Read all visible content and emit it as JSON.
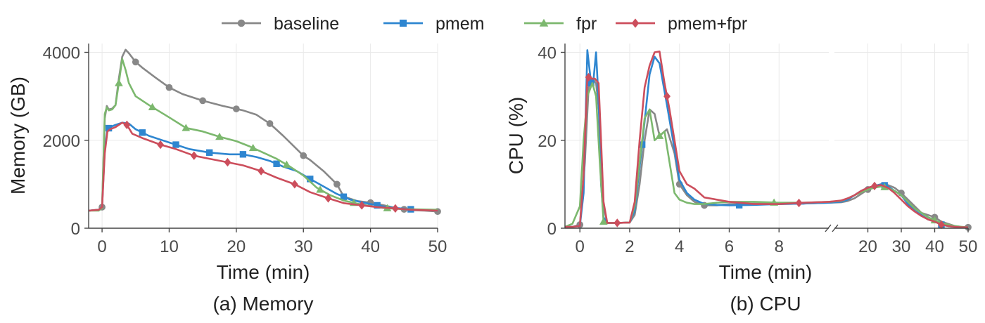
{
  "colors": {
    "baseline": "#888888",
    "pmem": "#2e86d0",
    "fpr": "#7cb86e",
    "pmem+fpr": "#cc4e5c"
  },
  "legend": [
    {
      "label": "baseline",
      "marker": "circle"
    },
    {
      "label": "pmem",
      "marker": "square"
    },
    {
      "label": "fpr",
      "marker": "triangle"
    },
    {
      "label": "pmem+fpr",
      "marker": "diamond"
    }
  ],
  "chart_data": [
    {
      "type": "line",
      "caption": "(a) Memory",
      "xlabel": "Time (min)",
      "ylabel": "Memory (GB)",
      "xlim": [
        -2,
        50
      ],
      "ylim": [
        0,
        4200
      ],
      "xticks": [
        0,
        10,
        20,
        30,
        40,
        50
      ],
      "yticks": [
        0,
        2000,
        4000
      ],
      "grid": true,
      "series": [
        {
          "name": "baseline",
          "marker": "circle",
          "x": [
            -2,
            -0.5,
            0,
            0.4,
            0.7,
            1,
            1.5,
            2,
            2.5,
            3,
            3.5,
            4,
            5,
            6,
            8,
            10,
            12,
            15,
            18,
            21,
            23,
            25,
            27,
            29,
            30,
            31,
            33,
            35,
            36,
            38,
            40,
            42,
            44,
            46,
            48,
            50
          ],
          "y": [
            400,
            420,
            480,
            2500,
            2780,
            2700,
            2720,
            2800,
            3400,
            3900,
            4060,
            3980,
            3780,
            3650,
            3420,
            3200,
            3050,
            2900,
            2780,
            2680,
            2580,
            2380,
            2100,
            1800,
            1650,
            1550,
            1300,
            1000,
            720,
            620,
            580,
            520,
            450,
            410,
            400,
            380
          ],
          "marker_x": [
            0,
            5,
            10,
            15,
            20,
            25,
            30,
            35,
            40,
            45,
            50
          ]
        },
        {
          "name": "pmem",
          "marker": "square",
          "x": [
            -2,
            -0.5,
            0,
            0.4,
            0.8,
            1.2,
            2,
            3,
            4,
            5,
            7,
            9,
            11,
            13,
            16,
            19,
            21,
            23,
            25,
            27,
            29,
            31,
            33,
            35,
            37,
            39,
            41,
            43,
            46,
            50
          ],
          "y": [
            400,
            420,
            480,
            1800,
            2250,
            2300,
            2350,
            2400,
            2380,
            2250,
            2100,
            2000,
            1900,
            1800,
            1720,
            1680,
            1680,
            1620,
            1530,
            1400,
            1300,
            1120,
            950,
            780,
            650,
            580,
            520,
            470,
            430,
            400
          ],
          "marker_x": [
            1,
            6,
            11,
            16,
            21,
            26,
            31,
            36,
            41,
            46
          ]
        },
        {
          "name": "fpr",
          "marker": "triangle",
          "x": [
            -2,
            -0.5,
            0,
            0.4,
            0.7,
            1,
            1.5,
            2,
            2.5,
            3,
            3.5,
            4,
            5,
            7,
            10,
            12.5,
            15,
            17.5,
            20,
            22,
            24,
            26,
            28,
            30,
            32,
            34,
            36,
            38,
            40,
            42,
            44,
            46,
            50
          ],
          "y": [
            400,
            400,
            460,
            2600,
            2750,
            2680,
            2700,
            2800,
            3300,
            3850,
            3600,
            3300,
            3000,
            2800,
            2520,
            2280,
            2200,
            2080,
            1980,
            1860,
            1720,
            1580,
            1400,
            1200,
            920,
            750,
            630,
            560,
            500,
            460,
            440,
            430,
            420
          ],
          "marker_x": [
            2.5,
            7.5,
            12.5,
            17.5,
            22.5,
            27.5,
            32.5,
            37.5,
            42.5
          ]
        },
        {
          "name": "pmem+fpr",
          "marker": "diamond",
          "x": [
            -2,
            -0.5,
            0,
            0.4,
            0.8,
            1.2,
            2,
            3,
            3.7,
            4.5,
            6,
            8.7,
            11,
            13.7,
            16,
            18.7,
            21,
            23.7,
            26,
            28.7,
            31,
            33.7,
            36,
            38.7,
            41,
            43.7,
            46,
            50
          ],
          "y": [
            400,
            420,
            480,
            1700,
            2200,
            2250,
            2300,
            2400,
            2350,
            2150,
            2050,
            1900,
            1800,
            1650,
            1580,
            1500,
            1430,
            1300,
            1150,
            1000,
            820,
            680,
            570,
            520,
            480,
            450,
            420,
            400
          ],
          "marker_x": [
            3.7,
            8.7,
            13.7,
            18.7,
            23.7,
            28.7,
            33.7,
            38.7,
            43.7
          ]
        }
      ]
    },
    {
      "type": "line",
      "caption": "(b) CPU",
      "xlabel": "Time (min)",
      "ylabel": "CPU (%)",
      "broken_x_axis": true,
      "ylim": [
        0,
        42
      ],
      "yticks": [
        0,
        20,
        40
      ],
      "grid": true,
      "left_segment": {
        "xlim": [
          -0.6,
          10
        ],
        "xticks": [
          0,
          2,
          4,
          6,
          8
        ]
      },
      "right_segment": {
        "xlim": [
          10,
          50
        ],
        "xticks": [
          20,
          30,
          40,
          50
        ]
      },
      "series": [
        {
          "name": "baseline",
          "marker": "circle",
          "x": [
            -0.6,
            -0.3,
            0,
            0.2,
            0.35,
            0.5,
            0.65,
            0.8,
            0.95,
            1.1,
            1.5,
            2,
            2.2,
            2.4,
            2.6,
            2.8,
            3,
            3.2,
            3.5,
            3.8,
            4,
            4.3,
            4.6,
            5,
            5.5,
            6,
            6.5,
            7,
            8,
            9,
            10,
            12,
            14,
            16,
            18,
            20,
            22,
            24,
            26,
            28,
            30,
            32,
            34,
            36,
            38,
            40,
            42,
            44,
            46,
            48,
            50
          ],
          "y": [
            0.3,
            0.3,
            0.8,
            15,
            32,
            34,
            33,
            25,
            5,
            1.2,
            1.2,
            1.3,
            3,
            10,
            20,
            27,
            26,
            21,
            22.5,
            17,
            10,
            7.5,
            6,
            5.2,
            5.2,
            5.5,
            5.5,
            5.6,
            5.5,
            5.6,
            5.8,
            5.9,
            6.2,
            6.8,
            7.8,
            8.8,
            9.6,
            10,
            9.8,
            9.2,
            8,
            6.5,
            5,
            3.5,
            3,
            2.5,
            1.5,
            1,
            0.5,
            0.3,
            0.2
          ],
          "marker_x": [
            0,
            4,
            5,
            20,
            30,
            40,
            50
          ]
        },
        {
          "name": "pmem",
          "marker": "square",
          "x": [
            -0.6,
            -0.3,
            0,
            0.15,
            0.3,
            0.45,
            0.55,
            0.65,
            0.75,
            0.85,
            0.95,
            1.1,
            1.5,
            2,
            2.2,
            2.5,
            2.8,
            3,
            3.2,
            3.5,
            3.8,
            4,
            4.3,
            4.6,
            5,
            5.5,
            6,
            7,
            8,
            9,
            10,
            12,
            14,
            16,
            18,
            20,
            22,
            24,
            26,
            28,
            30,
            32,
            34,
            36,
            38,
            40,
            42,
            44,
            46,
            48,
            50
          ],
          "y": [
            0.3,
            0.3,
            0.5,
            8,
            40.5,
            33,
            34,
            40,
            29,
            10,
            2.5,
            1.2,
            1.2,
            1.3,
            4,
            19,
            35,
            39,
            37.5,
            28,
            18,
            11,
            8,
            6.5,
            5.5,
            5.3,
            5.2,
            5.3,
            5.5,
            5.6,
            5.8,
            6,
            6.5,
            7.5,
            8.5,
            9.2,
            9.6,
            10,
            9.5,
            8.5,
            7.5,
            5.5,
            4,
            3,
            2,
            1.5,
            0.8,
            0.5,
            0.3,
            0.2,
            0.2
          ],
          "marker_x": [
            0.45,
            2.5,
            6.4,
            25,
            42
          ]
        },
        {
          "name": "fpr",
          "marker": "triangle",
          "x": [
            -0.6,
            -0.3,
            0,
            0.15,
            0.3,
            0.5,
            0.65,
            0.8,
            0.95,
            1.1,
            1.5,
            2,
            2.2,
            2.4,
            2.6,
            2.8,
            3,
            3.2,
            3.4,
            3.6,
            3.8,
            4,
            4.3,
            4.6,
            5,
            5.5,
            6,
            7,
            8,
            9,
            10,
            12,
            14,
            16,
            18,
            20,
            22,
            24,
            26,
            28,
            30,
            32,
            34,
            36,
            38,
            40,
            42,
            44,
            46,
            48,
            50
          ],
          "y": [
            0.3,
            1,
            5,
            20,
            30,
            33,
            30,
            15,
            1.5,
            1.2,
            1.2,
            1.3,
            5,
            15,
            25,
            27,
            20,
            21,
            22,
            15,
            8,
            6.5,
            5.8,
            5.5,
            5.5,
            5.8,
            6,
            6,
            5.8,
            5.8,
            6,
            6.2,
            6.8,
            7.5,
            8.2,
            8.8,
            9.2,
            9.5,
            9.2,
            8.5,
            7.5,
            6,
            4.5,
            3.5,
            2.5,
            1.8,
            1.2,
            0.8,
            0.5,
            0.3,
            0.2
          ],
          "marker_x": [
            0.95,
            3.2,
            7.8,
            25,
            40
          ]
        },
        {
          "name": "pmem+fpr",
          "marker": "diamond",
          "x": [
            -0.6,
            -0.3,
            0,
            0.15,
            0.3,
            0.45,
            0.6,
            0.75,
            0.85,
            0.95,
            1.1,
            1.5,
            2,
            2.2,
            2.4,
            2.6,
            2.8,
            3,
            3.2,
            3.4,
            3.6,
            3.8,
            4,
            4.3,
            4.6,
            5,
            5.5,
            6,
            7,
            8,
            9,
            10,
            12,
            14,
            16,
            18,
            20,
            22,
            24,
            26,
            28,
            30,
            32,
            34,
            36,
            38,
            40,
            42,
            44,
            46,
            48,
            50
          ],
          "y": [
            0.3,
            0.3,
            0.5,
            12,
            34.5,
            34,
            34,
            33,
            20,
            6,
            1.2,
            1.2,
            1.3,
            6,
            20,
            32,
            37,
            40,
            40.2,
            33,
            27,
            20,
            13,
            10,
            9,
            7,
            6.5,
            6,
            5.5,
            5.5,
            5.8,
            6,
            6.3,
            6.8,
            7.5,
            8.5,
            9.2,
            9.6,
            9.8,
            9.2,
            8,
            6.5,
            5,
            3.8,
            2.8,
            2,
            1.5,
            0.8,
            0.5,
            0.3,
            0.2,
            0.2
          ],
          "marker_x": [
            0.35,
            1.5,
            3.5,
            8.8,
            22,
            42
          ]
        }
      ]
    }
  ]
}
